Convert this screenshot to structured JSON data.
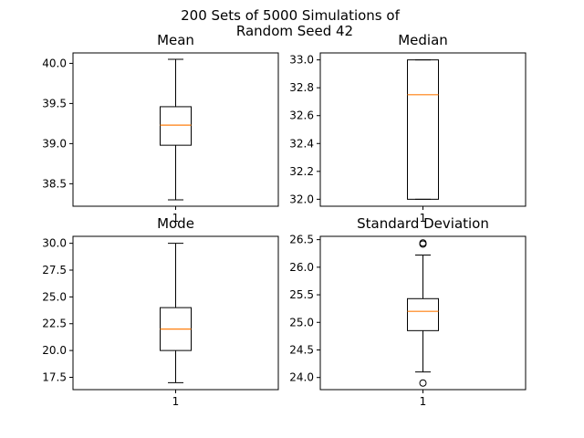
{
  "chart_data": {
    "type": "box",
    "suptitle": [
      "200 Sets of 5000 Simulations of",
      "Random Seed 42"
    ],
    "colors": {
      "box": "#000000",
      "median": "#ff7f0e",
      "background": "#ffffff"
    },
    "panels": [
      {
        "title": "Mean",
        "xticks": [
          "1"
        ],
        "ylim": [
          38.22,
          40.13
        ],
        "yticks": [
          "38.5",
          "39.0",
          "39.5",
          "40.0"
        ],
        "ytick_values": [
          38.5,
          39.0,
          39.5,
          40.0
        ],
        "box": {
          "whisker_low": 38.3,
          "q1": 38.98,
          "median": 39.23,
          "q3": 39.46,
          "whisker_high": 40.05,
          "fliers": []
        }
      },
      {
        "title": "Median",
        "xticks": [
          "1"
        ],
        "ylim": [
          31.95,
          33.05
        ],
        "yticks": [
          "32.0",
          "32.2",
          "32.4",
          "32.6",
          "32.8",
          "33.0"
        ],
        "ytick_values": [
          32.0,
          32.2,
          32.4,
          32.6,
          32.8,
          33.0
        ],
        "box": {
          "whisker_low": 32.0,
          "q1": 32.0,
          "median": 32.75,
          "q3": 33.0,
          "whisker_high": 33.0,
          "fliers": []
        }
      },
      {
        "title": "Mode",
        "xticks": [
          "1"
        ],
        "ylim": [
          16.35,
          30.65
        ],
        "yticks": [
          "17.5",
          "20.0",
          "22.5",
          "25.0",
          "27.5",
          "30.0"
        ],
        "ytick_values": [
          17.5,
          20.0,
          22.5,
          25.0,
          27.5,
          30.0
        ],
        "box": {
          "whisker_low": 17.0,
          "q1": 20.0,
          "median": 22.0,
          "q3": 24.0,
          "whisker_high": 30.0,
          "fliers": []
        }
      },
      {
        "title": "Standard Deviation",
        "xticks": [
          "1"
        ],
        "ylim": [
          23.78,
          26.56
        ],
        "yticks": [
          "24.0",
          "24.5",
          "25.0",
          "25.5",
          "26.0",
          "26.5"
        ],
        "ytick_values": [
          24.0,
          24.5,
          25.0,
          25.5,
          26.0,
          26.5
        ],
        "box": {
          "whisker_low": 24.1,
          "q1": 24.85,
          "median": 25.2,
          "q3": 25.43,
          "whisker_high": 26.22,
          "fliers": [
            26.42,
            26.44,
            23.9
          ]
        }
      }
    ]
  }
}
